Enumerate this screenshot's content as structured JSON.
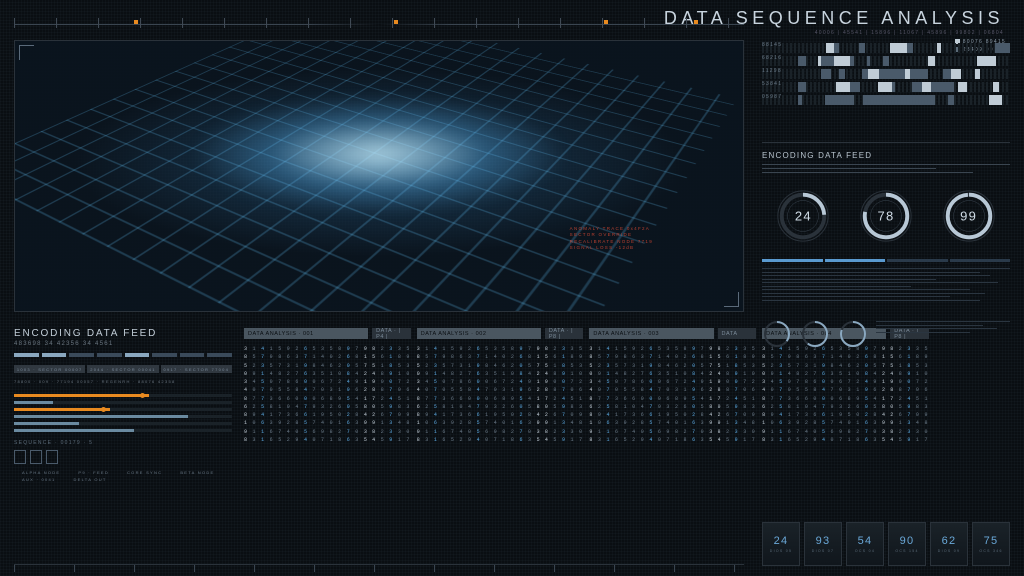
{
  "header": {
    "title": "DATA SEQUENCE ANALYSIS",
    "subtitle": "40006 | 45541 | 15896 | 11067 | 45896 | 99802 | 06804"
  },
  "top_markers": [
    120,
    380,
    590,
    680
  ],
  "colors": {
    "bg": "#0a0e12",
    "grid": "#2a323a",
    "text": "#8a9aa8",
    "bright": "#c8d4de",
    "accent_blue": "#5aa8e0",
    "accent_orange": "#e88a20",
    "bar": "#6a8aa0",
    "pill": "#4a5660"
  },
  "viz_red_lines": [
    "ANOMALY TRACE 0x4F2A",
    "SECTOR OVERRIDE",
    "RECALIBRATE NODE 7719",
    "SIGNAL LOSS -12dB"
  ],
  "encoding_left": {
    "title": "ENCODING DATA FEED",
    "numbers": "483698  34 42356  34  4561",
    "sectors": [
      "1003 · SECTOR 00007",
      "2044 · SECTOR 00041",
      "0917 · SECTOR 77004"
    ],
    "status_line": "78800 · 009 · 77194   00057 · REGENRH · 88076   42358",
    "hbars": [
      {
        "fill": 62,
        "dot": 58,
        "color": "#e88a20"
      },
      {
        "fill": 18,
        "dot": null,
        "color": "#6a8aa0"
      },
      {
        "fill": 44,
        "dot": 40,
        "color": "#e88a20"
      },
      {
        "fill": 80,
        "dot": null,
        "color": "#6a8aa0"
      },
      {
        "fill": 30,
        "dot": null,
        "color": "#6a8aa0"
      },
      {
        "fill": 55,
        "dot": null,
        "color": "#6a8aa0"
      }
    ],
    "sequence_label": "SEQUENCE · 00179 · 5",
    "legend": [
      "ALPHA NODE",
      "P9 · FEED",
      "CORE SYNC",
      "BETA NODE",
      "AUX · 0041",
      "DELTA OUT"
    ]
  },
  "data_groups": [
    {
      "main": "DATA ANALYSIS · 001",
      "side": "DATA · | P4 |"
    },
    {
      "main": "DATA ANALYSIS · 002",
      "side": "DATA · | P8 |"
    },
    {
      "main": "DATA ANALYSIS · 003",
      "side": "DATA"
    },
    {
      "main": "DATA ANALYSIS · 004",
      "side": "DATA · | P8 |"
    }
  ],
  "hex_wide": [
    "3 1 4 1 5 9 2 6 5 3 5 8 9 7 9",
    "8 5 7 9 8 6 3 7 1 4 0 2 6 8 1",
    "5 2 3 5 7 3 1 9 8 4 6 2 0 5 7",
    "0 9 1 4 8 2 7 6 3 5 1 0 8 4 2",
    "3 4 5 0 7 8 6 0 0 6 7 2 4 9 1",
    "4 0 7 0 5 5 8 4 7 0 3 1 9 6 2",
    "8 7 7 3 6 6 0 0 0 6 8 9 5 4 1",
    "6 2 5 8 1 0 4 7 9 3 2 6 0 5 8",
    "8 9 4 1 7 3 6 6 1 9 5 0 2 8 4",
    "1 0 6 3 9 2 8 5 7 4 0 1 6 3 9",
    "9 1 1 6 7 4 0 5 6 9 8 2 7 0 3",
    "8 3 1 6 5 2 9 4 0 7 1 8 6 3 5"
  ],
  "hex_narrow": [
    "8 2 3 3 5",
    "5 6 1 8 9",
    "5 1 8 5 3",
    "4 8 9 1 0",
    "9 0 0 7 2",
    "8 8 7 0 6",
    "7 2 4 5 1",
    "0 5 9 8 3",
    "2 6 7 0 9",
    "9 1 3 4 8",
    "8 2 3 3 0",
    "4 5 9 1 7"
  ],
  "right": {
    "legend": [
      {
        "label": "80076 89415",
        "color": "#c0ccd6"
      },
      {
        "label": "28409 99897",
        "color": "#5a6a78"
      }
    ],
    "spectro_ids": [
      "88145",
      "68216",
      "11298",
      "53841",
      "05987"
    ],
    "enc_title": "ENCODING DATA FEED",
    "dials": [
      24,
      78,
      99
    ],
    "tab_count": 4,
    "tab_active": [
      0,
      1
    ]
  },
  "tiles": [
    {
      "n": "24",
      "l": "DIOS 05"
    },
    {
      "n": "93",
      "l": "DIOS 07"
    },
    {
      "n": "54",
      "l": "OCS 04"
    },
    {
      "n": "90",
      "l": "OCS 154"
    },
    {
      "n": "62",
      "l": "DIOS 09"
    },
    {
      "n": "75",
      "l": "OCS 346"
    }
  ]
}
